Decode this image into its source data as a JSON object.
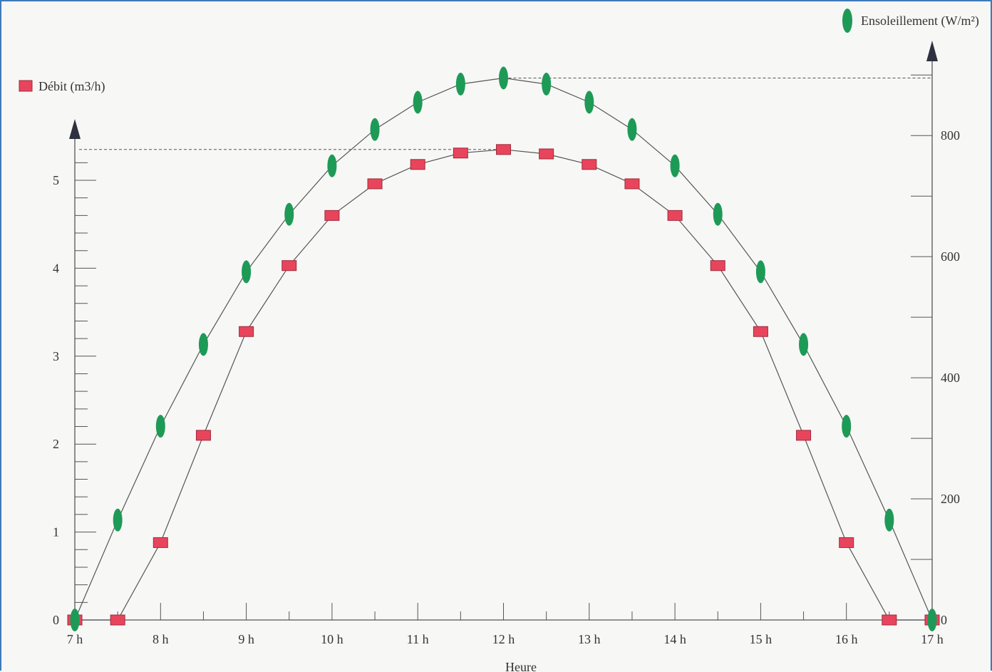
{
  "chart_data": {
    "type": "scatter",
    "x_axis": {
      "label": "Heure",
      "range": [
        7,
        17
      ],
      "tick_labels": [
        "7 h",
        "8 h",
        "9 h",
        "10 h",
        "11 h",
        "12 h",
        "13 h",
        "14 h",
        "15 h",
        "16 h",
        "17 h"
      ],
      "tick_values": [
        7,
        8,
        9,
        10,
        11,
        12,
        13,
        14,
        15,
        16,
        17
      ]
    },
    "y_left": {
      "range": [
        0,
        5.3
      ],
      "ticks": [
        0,
        1,
        2,
        3,
        4,
        5
      ],
      "tick_labels": [
        "0",
        "1",
        "2",
        "3",
        "4",
        "5"
      ],
      "minor_step": 0.2
    },
    "y_right": {
      "range": [
        0,
        900
      ],
      "ticks": [
        0,
        200,
        400,
        600,
        800
      ],
      "tick_labels": [
        "0",
        "200",
        "400",
        "600",
        "800"
      ],
      "minor_step": 100
    },
    "grid": false,
    "legend": "top-left and top-right",
    "series": [
      {
        "name": "Débit (m3/h)",
        "axis": "left",
        "marker": "square",
        "color": "#e8455c",
        "x": [
          7,
          7.5,
          8,
          8.5,
          9,
          9.5,
          10,
          10.5,
          11,
          11.5,
          12,
          12.5,
          13,
          13.5,
          14,
          14.5,
          15,
          15.5,
          16,
          16.5,
          17
        ],
        "y": [
          0,
          0,
          0.88,
          2.1,
          3.28,
          4.03,
          4.6,
          4.96,
          5.18,
          5.31,
          5.35,
          5.3,
          5.18,
          4.96,
          4.6,
          4.03,
          3.28,
          2.1,
          0.88,
          0,
          0
        ]
      },
      {
        "name": "Ensoleillement (W/m²)",
        "axis": "right",
        "marker": "ellipse",
        "color": "#1e9a57",
        "x": [
          7,
          7.5,
          8,
          8.5,
          9,
          9.5,
          10,
          10.5,
          11,
          11.5,
          12,
          12.5,
          13,
          13.5,
          14,
          14.5,
          15,
          15.5,
          16,
          16.5,
          17
        ],
        "y": [
          0,
          165,
          320,
          455,
          575,
          670,
          750,
          810,
          855,
          885,
          895,
          885,
          855,
          810,
          750,
          670,
          575,
          455,
          320,
          165,
          0
        ]
      }
    ]
  }
}
